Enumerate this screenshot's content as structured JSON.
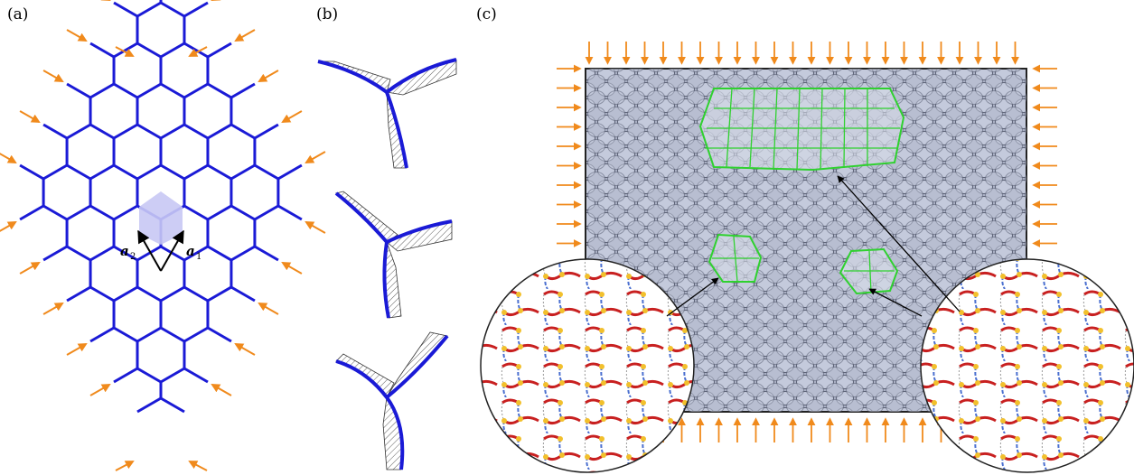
{
  "labels": {
    "a": "(a)",
    "b": "(b)",
    "c": "(c)"
  },
  "vectors": {
    "a1": "a",
    "a1_sub": "1",
    "a2": "a",
    "a2_sub": "2"
  },
  "colors": {
    "lattice": "#1a1ad6",
    "arrow": "#f08a1c",
    "unit_cell": "#c8c8f4",
    "bulk": "#aeb4c8",
    "bulk_cell_fill": "#c2c8da",
    "bulk_cell_stroke": "#5a6074",
    "green": "#2fd12f",
    "hatch": "#333333",
    "force_red": "#c82020",
    "force_blue": "#4a6fd0",
    "force_yellow": "#f2c02c"
  },
  "icons": [
    "compression-arrow",
    "lattice-vector-arrow",
    "pointer-arrow"
  ]
}
